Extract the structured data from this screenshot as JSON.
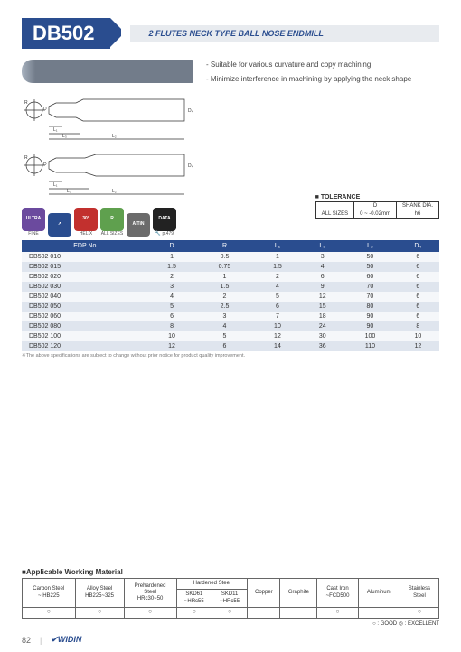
{
  "header": {
    "title": "DB502",
    "subtitle": "2 FLUTES NECK TYPE BALL NOSE ENDMILL"
  },
  "description": {
    "line1": "- Suitable for  various curvature and copy machining",
    "line2": "- Minimize interference in machining by applying the neck shape"
  },
  "badges": [
    {
      "label": "ULTRA\nFINE",
      "bg": "#6b4a9e"
    },
    {
      "label": "↗",
      "bg": "#2a4d8f"
    },
    {
      "label": "30°\nHELIX",
      "bg": "#c2302e"
    },
    {
      "label": "R\nALL SIZES",
      "bg": "#5fa04e"
    },
    {
      "label": "AlTiN",
      "bg": "#6b6b6b"
    },
    {
      "label": "DATA\n🔧\np.479",
      "bg": "#222222"
    }
  ],
  "tolerance": {
    "heading": "■ TOLERANCE",
    "cols": [
      "",
      "D",
      "SHANK DIA."
    ],
    "row": [
      "ALL SIZES",
      "0 ~ -0.02mm",
      "h6"
    ]
  },
  "spec_table": {
    "columns": [
      "EDP No",
      "D",
      "R",
      "L₁",
      "L₃",
      "L₂",
      "D₄"
    ],
    "rows": [
      [
        "DB502 010",
        "1",
        "0.5",
        "1",
        "3",
        "50",
        "6"
      ],
      [
        "DB502 015",
        "1.5",
        "0.75",
        "1.5",
        "4",
        "50",
        "6"
      ],
      [
        "DB502 020",
        "2",
        "1",
        "2",
        "6",
        "60",
        "6"
      ],
      [
        "DB502 030",
        "3",
        "1.5",
        "4",
        "9",
        "70",
        "6"
      ],
      [
        "DB502 040",
        "4",
        "2",
        "5",
        "12",
        "70",
        "6"
      ],
      [
        "DB502 050",
        "5",
        "2.5",
        "6",
        "15",
        "80",
        "6"
      ],
      [
        "DB502 060",
        "6",
        "3",
        "7",
        "18",
        "90",
        "6"
      ],
      [
        "DB502 080",
        "8",
        "4",
        "10",
        "24",
        "90",
        "8"
      ],
      [
        "DB502 100",
        "10",
        "5",
        "12",
        "30",
        "100",
        "10"
      ],
      [
        "DB502 120",
        "12",
        "6",
        "14",
        "36",
        "110",
        "12"
      ]
    ],
    "footnote": "※The above specifications are subject to change without prior notice for product quality improvement."
  },
  "materials": {
    "heading": "■Applicable Working Material",
    "columns": [
      "Carbon Steel\n~ HB225",
      "Alloy Steel\nHB225~325",
      "Prehardened\nSteel\nHRc30~50",
      "SKD61\n~HRc55",
      "SKD11\n~HRc55",
      "Copper",
      "Graphite",
      "Cast Iron\n~FCD500",
      "Aluminum",
      "Stainless\nSteel"
    ],
    "group_hardened": "Hardened Steel",
    "values": [
      "○",
      "○",
      "○",
      "○",
      "○",
      "",
      "",
      "○",
      "",
      "○"
    ],
    "legend": "○ : GOOD  ◎ : EXCELLENT"
  },
  "footer": {
    "page": "82",
    "brand": "WIDIN"
  },
  "colors": {
    "primary": "#2a4d8f",
    "row_even": "#dfe5ee",
    "row_odd": "#f5f7fa"
  }
}
